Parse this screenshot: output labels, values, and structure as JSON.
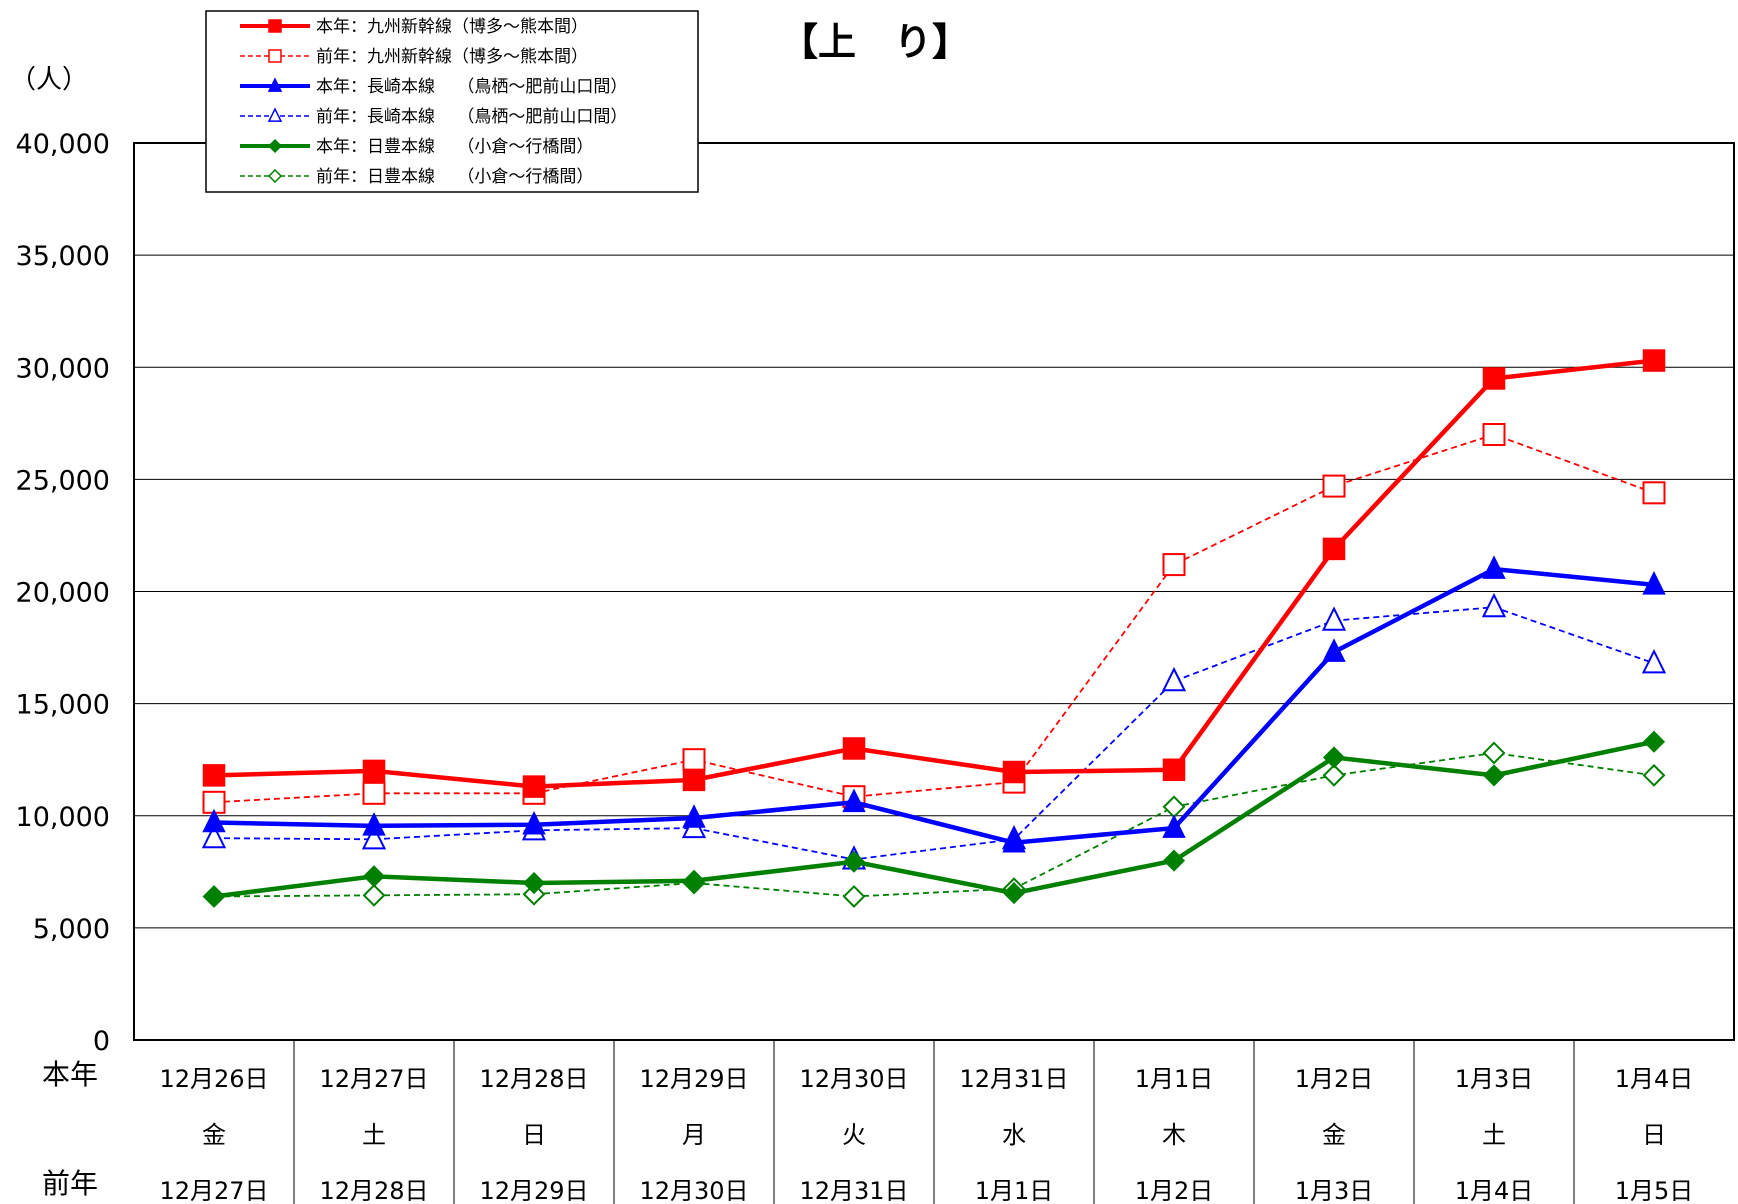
{
  "chart_data": {
    "type": "line",
    "title": "【上　り】",
    "ylabel": "（人）",
    "ylim": [
      0,
      40000
    ],
    "ytick_step": 5000,
    "yticks": [
      "0",
      "5,000",
      "10,000",
      "15,000",
      "20,000",
      "25,000",
      "30,000",
      "35,000",
      "40,000"
    ],
    "grid": true,
    "legend_position": "top-left",
    "row_labels": {
      "current": "本年",
      "previous": "前年"
    },
    "categories": [
      {
        "current": "12月26日",
        "weekday": "金",
        "previous": "12月27日"
      },
      {
        "current": "12月27日",
        "weekday": "土",
        "previous": "12月28日"
      },
      {
        "current": "12月28日",
        "weekday": "日",
        "previous": "12月29日"
      },
      {
        "current": "12月29日",
        "weekday": "月",
        "previous": "12月30日"
      },
      {
        "current": "12月30日",
        "weekday": "火",
        "previous": "12月31日"
      },
      {
        "current": "12月31日",
        "weekday": "水",
        "previous": "1月1日"
      },
      {
        "current": "1月1日",
        "weekday": "木",
        "previous": "1月2日"
      },
      {
        "current": "1月2日",
        "weekday": "金",
        "previous": "1月3日"
      },
      {
        "current": "1月3日",
        "weekday": "土",
        "previous": "1月4日"
      },
      {
        "current": "1月4日",
        "weekday": "日",
        "previous": "1月5日"
      }
    ],
    "series": [
      {
        "name": "本年：九州新幹線（博多～熊本間）",
        "color": "#ff0000",
        "style": "solid",
        "marker": "square",
        "filled": true,
        "values": [
          11800,
          12000,
          11300,
          11600,
          13000,
          11950,
          12050,
          21900,
          29500,
          30300
        ]
      },
      {
        "name": "前年：九州新幹線（博多～熊本間）",
        "color": "#ff0000",
        "style": "dashed",
        "marker": "square",
        "filled": false,
        "values": [
          10600,
          11000,
          11000,
          12500,
          10850,
          11500,
          21200,
          24700,
          27000,
          24400
        ]
      },
      {
        "name": "本年：長崎本線　 （鳥栖～肥前山口間）",
        "color": "#0000ff",
        "style": "solid",
        "marker": "triangle",
        "filled": true,
        "values": [
          9700,
          9550,
          9600,
          9900,
          10600,
          8800,
          9450,
          17300,
          21000,
          20300
        ]
      },
      {
        "name": "前年：長崎本線　 （鳥栖～肥前山口間）",
        "color": "#0000ff",
        "style": "dashed",
        "marker": "triangle",
        "filled": false,
        "values": [
          9000,
          8950,
          9350,
          9450,
          8050,
          8950,
          16000,
          18700,
          19300,
          16800
        ]
      },
      {
        "name": "本年：日豊本線　 （小倉～行橋間）",
        "color": "#008000",
        "style": "solid",
        "marker": "diamond",
        "filled": true,
        "values": [
          6400,
          7300,
          7000,
          7100,
          7950,
          6550,
          8000,
          12600,
          11800,
          13300
        ]
      },
      {
        "name": "前年：日豊本線　 （小倉～行橋間）",
        "color": "#008000",
        "style": "dashed",
        "marker": "diamond",
        "filled": false,
        "values": [
          6400,
          6450,
          6500,
          7000,
          6400,
          6750,
          10400,
          11800,
          12800,
          11800
        ]
      }
    ]
  }
}
